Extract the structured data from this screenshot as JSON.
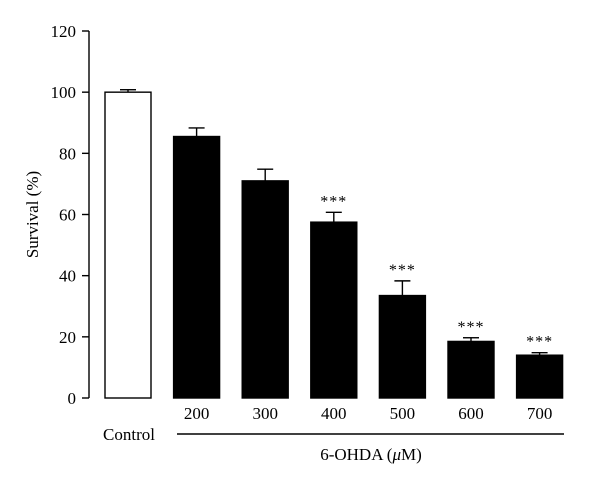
{
  "chart_data": {
    "type": "bar",
    "title": "",
    "ylabel": "Survival (%)",
    "xlabel": "6-OHDA (μM)",
    "xlabel_parts": [
      "6-OHDA (",
      "μ",
      "M)"
    ],
    "ylim": [
      0,
      120
    ],
    "yticks": [
      "0",
      "20",
      "40",
      "60",
      "80",
      "100",
      "120"
    ],
    "categories": [
      "Control",
      "200",
      "300",
      "400",
      "500",
      "600",
      "700"
    ],
    "values": [
      100,
      85.5,
      71,
      57.5,
      33.5,
      18.5,
      14
    ],
    "errors": [
      0.8,
      2.8,
      3.8,
      3.2,
      4.8,
      1.2,
      0.8
    ],
    "significance": [
      "",
      "",
      "",
      "***",
      "***",
      "***",
      "***"
    ],
    "fill_colors": [
      "#ffffff",
      "#000000",
      "#000000",
      "#000000",
      "#000000",
      "#000000",
      "#000000"
    ],
    "grid": false,
    "legend": "none"
  }
}
